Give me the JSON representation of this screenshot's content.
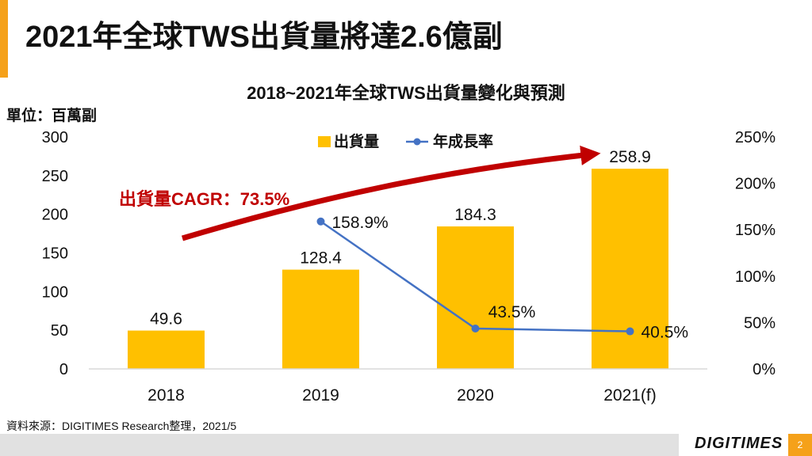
{
  "slide": {
    "title": "2021年全球TWS出貨量將達2.6億副",
    "source": "資料來源：DIGITIMES Research整理，2021/5",
    "logo": "DIGITIMES",
    "page_number": "2",
    "accent_color": "#f5a11a"
  },
  "chart_data": {
    "type": "bar",
    "title": "2018~2021年全球TWS出貨量變化與預測",
    "unit_label": "單位：百萬副",
    "categories": [
      "2018",
      "2019",
      "2020",
      "2021(f)"
    ],
    "series": [
      {
        "name": "出貨量",
        "type": "bar",
        "axis": "left",
        "color": "#ffc000",
        "values": [
          49.6,
          128.4,
          184.3,
          258.9
        ],
        "labels": [
          "49.6",
          "128.4",
          "184.3",
          "258.9"
        ]
      },
      {
        "name": "年成長率",
        "type": "line",
        "axis": "right",
        "color": "#4472c4",
        "values": [
          null,
          158.9,
          43.5,
          40.5
        ],
        "labels": [
          "",
          "158.9%",
          "43.5%",
          "40.5%"
        ]
      }
    ],
    "y_left": {
      "min": 0,
      "max": 300,
      "ticks": [
        "0",
        "50",
        "100",
        "150",
        "200",
        "250",
        "300"
      ]
    },
    "y_right": {
      "min": 0,
      "max": 250,
      "ticks": [
        "0%",
        "50%",
        "100%",
        "150%",
        "200%",
        "250%"
      ]
    },
    "legend_position": "top-center",
    "grid": false,
    "annotation": {
      "text": "出貨量CAGR：73.5%",
      "color": "#c00000"
    }
  }
}
